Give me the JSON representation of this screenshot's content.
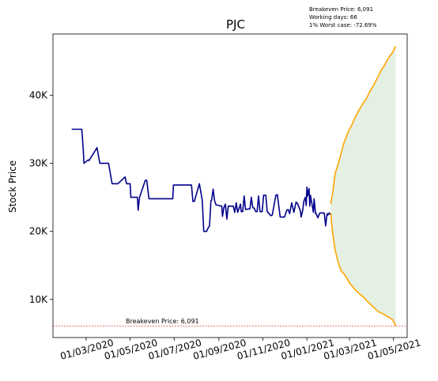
{
  "chart_data": {
    "type": "line",
    "title": "PJC",
    "xlabel": "",
    "ylabel": "Stock Price",
    "xlim": [
      "2020-01-15",
      "2021-05-20"
    ],
    "ylim": [
      4400,
      49000
    ],
    "grid": false,
    "x_ticks": [
      {
        "date": "2020-03-01",
        "label": "01/03/2020"
      },
      {
        "date": "2020-05-01",
        "label": "01/05/2020"
      },
      {
        "date": "2020-07-01",
        "label": "01/07/2020"
      },
      {
        "date": "2020-09-01",
        "label": "01/09/2020"
      },
      {
        "date": "2020-11-01",
        "label": "01/11/2020"
      },
      {
        "date": "2021-01-01",
        "label": "01/01/2021"
      },
      {
        "date": "2021-03-01",
        "label": "01/03/2021"
      },
      {
        "date": "2021-05-01",
        "label": "01/05/2021"
      }
    ],
    "y_ticks": [
      {
        "value": 10000,
        "label": "10K"
      },
      {
        "value": 20000,
        "label": "20K"
      },
      {
        "value": 30000,
        "label": "30K"
      },
      {
        "value": 40000,
        "label": "40K"
      }
    ],
    "annotations": {
      "info_lines": [
        "Breakeven Price: 6,091",
        "Working days: 66",
        "1% Worst case: -72.69%"
      ],
      "breakeven_label": "Breakeven Price: 6,091"
    },
    "breakeven_price": 6091,
    "breakeven_color": "#d62728",
    "series": [
      {
        "color": "#00008b",
        "x": [
          "2020-02-10",
          "2020-02-24",
          "2020-02-26",
          "2020-02-27",
          "2020-03-04",
          "2020-03-05",
          "2020-03-16",
          "2020-03-20",
          "2020-04-01",
          "2020-04-06",
          "2020-04-07",
          "2020-04-09",
          "2020-04-14",
          "2020-04-24",
          "2020-04-26",
          "2020-05-01",
          "2020-05-02",
          "2020-05-04",
          "2020-05-11",
          "2020-05-12",
          "2020-05-14",
          "2020-05-22",
          "2020-05-24",
          "2020-05-27",
          "2020-06-10",
          "2020-06-12",
          "2020-06-29",
          "2020-06-30",
          "2020-07-08",
          "2020-07-09",
          "2020-07-22",
          "2020-07-23",
          "2020-07-25",
          "2020-07-27",
          "2020-07-29",
          "2020-08-05",
          "2020-08-09",
          "2020-08-11",
          "2020-08-12",
          "2020-08-14",
          "2020-08-15",
          "2020-08-17",
          "2020-08-19",
          "2020-08-21",
          "2020-08-22",
          "2020-08-24",
          "2020-08-26",
          "2020-08-28",
          "2020-09-01",
          "2020-09-05",
          "2020-09-06",
          "2020-09-08",
          "2020-09-10",
          "2020-09-12",
          "2020-09-14",
          "2020-09-16",
          "2020-09-19",
          "2020-09-21",
          "2020-09-23",
          "2020-09-25",
          "2020-09-27",
          "2020-10-01",
          "2020-10-02",
          "2020-10-04",
          "2020-10-06",
          "2020-10-08",
          "2020-10-12",
          "2020-10-14",
          "2020-10-16",
          "2020-10-18",
          "2020-10-20",
          "2020-10-22",
          "2020-10-24",
          "2020-10-26",
          "2020-10-28",
          "2020-10-31",
          "2020-11-02",
          "2020-11-05",
          "2020-11-07",
          "2020-11-12",
          "2020-11-14",
          "2020-11-19",
          "2020-11-21",
          "2020-11-25",
          "2020-11-29",
          "2020-12-01",
          "2020-12-04",
          "2020-12-06",
          "2020-12-08",
          "2020-12-11",
          "2020-12-14",
          "2020-12-17",
          "2020-12-19",
          "2020-12-23",
          "2020-12-24",
          "2020-12-26",
          "2020-12-28",
          "2020-12-30",
          "2020-12-31",
          "2021-01-01",
          "2021-01-02",
          "2021-01-04",
          "2021-01-05",
          "2021-01-06",
          "2021-01-08",
          "2021-01-10",
          "2021-01-11",
          "2021-01-13",
          "2021-01-14",
          "2021-01-16",
          "2021-01-19",
          "2021-01-21",
          "2021-01-25",
          "2021-01-27",
          "2021-01-29",
          "2021-01-30",
          "2021-02-01",
          "2021-02-03"
        ],
        "y": [
          35000,
          35000,
          32000,
          30000,
          30500,
          30400,
          32300,
          30000,
          30000,
          27000,
          27000,
          27000,
          27000,
          28000,
          27000,
          27000,
          25000,
          25000,
          25000,
          23100,
          25000,
          27500,
          27500,
          24800,
          24800,
          24800,
          24800,
          26800,
          26800,
          26800,
          26800,
          26800,
          26800,
          24400,
          24400,
          27000,
          24500,
          20000,
          20000,
          20000,
          20000,
          20500,
          20800,
          24500,
          24600,
          26200,
          24500,
          23900,
          23800,
          23700,
          22200,
          23500,
          24000,
          21800,
          23700,
          23700,
          23700,
          23700,
          22800,
          24200,
          22800,
          24000,
          22900,
          22900,
          25200,
          23200,
          23300,
          23300,
          25000,
          23500,
          23400,
          22900,
          22900,
          25200,
          22900,
          22900,
          25300,
          25300,
          22900,
          22300,
          22400,
          25300,
          25400,
          22100,
          22100,
          22100,
          23100,
          23200,
          22600,
          24200,
          22800,
          24300,
          24100,
          23000,
          22100,
          23000,
          24500,
          25000,
          23800,
          26500,
          25200,
          26300,
          23700,
          25300,
          24000,
          22800,
          24800,
          22600,
          22600,
          22000,
          22700,
          22700,
          22700,
          20800,
          22600,
          22400,
          22700,
          22400
        ]
      },
      {
        "color": "#ffa500",
        "x": [
          "2021-02-03",
          "2021-02-06",
          "2021-02-09",
          "2021-02-13",
          "2021-02-17",
          "2021-02-21",
          "2021-02-25",
          "2021-03-01",
          "2021-03-05",
          "2021-03-09",
          "2021-03-13",
          "2021-03-17",
          "2021-03-21",
          "2021-03-25",
          "2021-03-29",
          "2021-04-02",
          "2021-04-06",
          "2021-04-10",
          "2021-04-14",
          "2021-04-18",
          "2021-04-22",
          "2021-04-26",
          "2021-04-30",
          "2021-05-04"
        ],
        "y": [
          24000,
          25800,
          28500,
          29700,
          31300,
          32900,
          34000,
          35000,
          35800,
          36800,
          37600,
          38300,
          39000,
          39600,
          40500,
          41200,
          42000,
          42800,
          43700,
          44300,
          45100,
          45800,
          46300,
          47200
        ]
      },
      {
        "color": "#ffa500",
        "x": [
          "2021-02-03",
          "2021-02-06",
          "2021-02-09",
          "2021-02-13",
          "2021-02-17",
          "2021-02-21",
          "2021-02-25",
          "2021-03-01",
          "2021-03-05",
          "2021-03-09",
          "2021-03-13",
          "2021-03-17",
          "2021-03-21",
          "2021-03-25",
          "2021-03-29",
          "2021-04-02",
          "2021-04-06",
          "2021-04-10",
          "2021-04-14",
          "2021-04-18",
          "2021-04-22",
          "2021-04-26",
          "2021-04-30",
          "2021-05-04"
        ],
        "y": [
          22700,
          19500,
          17300,
          15600,
          14300,
          13800,
          13200,
          12400,
          11900,
          11400,
          11000,
          10600,
          10300,
          9800,
          9400,
          9000,
          8600,
          8200,
          8000,
          7800,
          7500,
          7300,
          7000,
          6100
        ]
      }
    ],
    "band": {
      "color": "#c8e2c8",
      "opacity": 0.5
    }
  }
}
